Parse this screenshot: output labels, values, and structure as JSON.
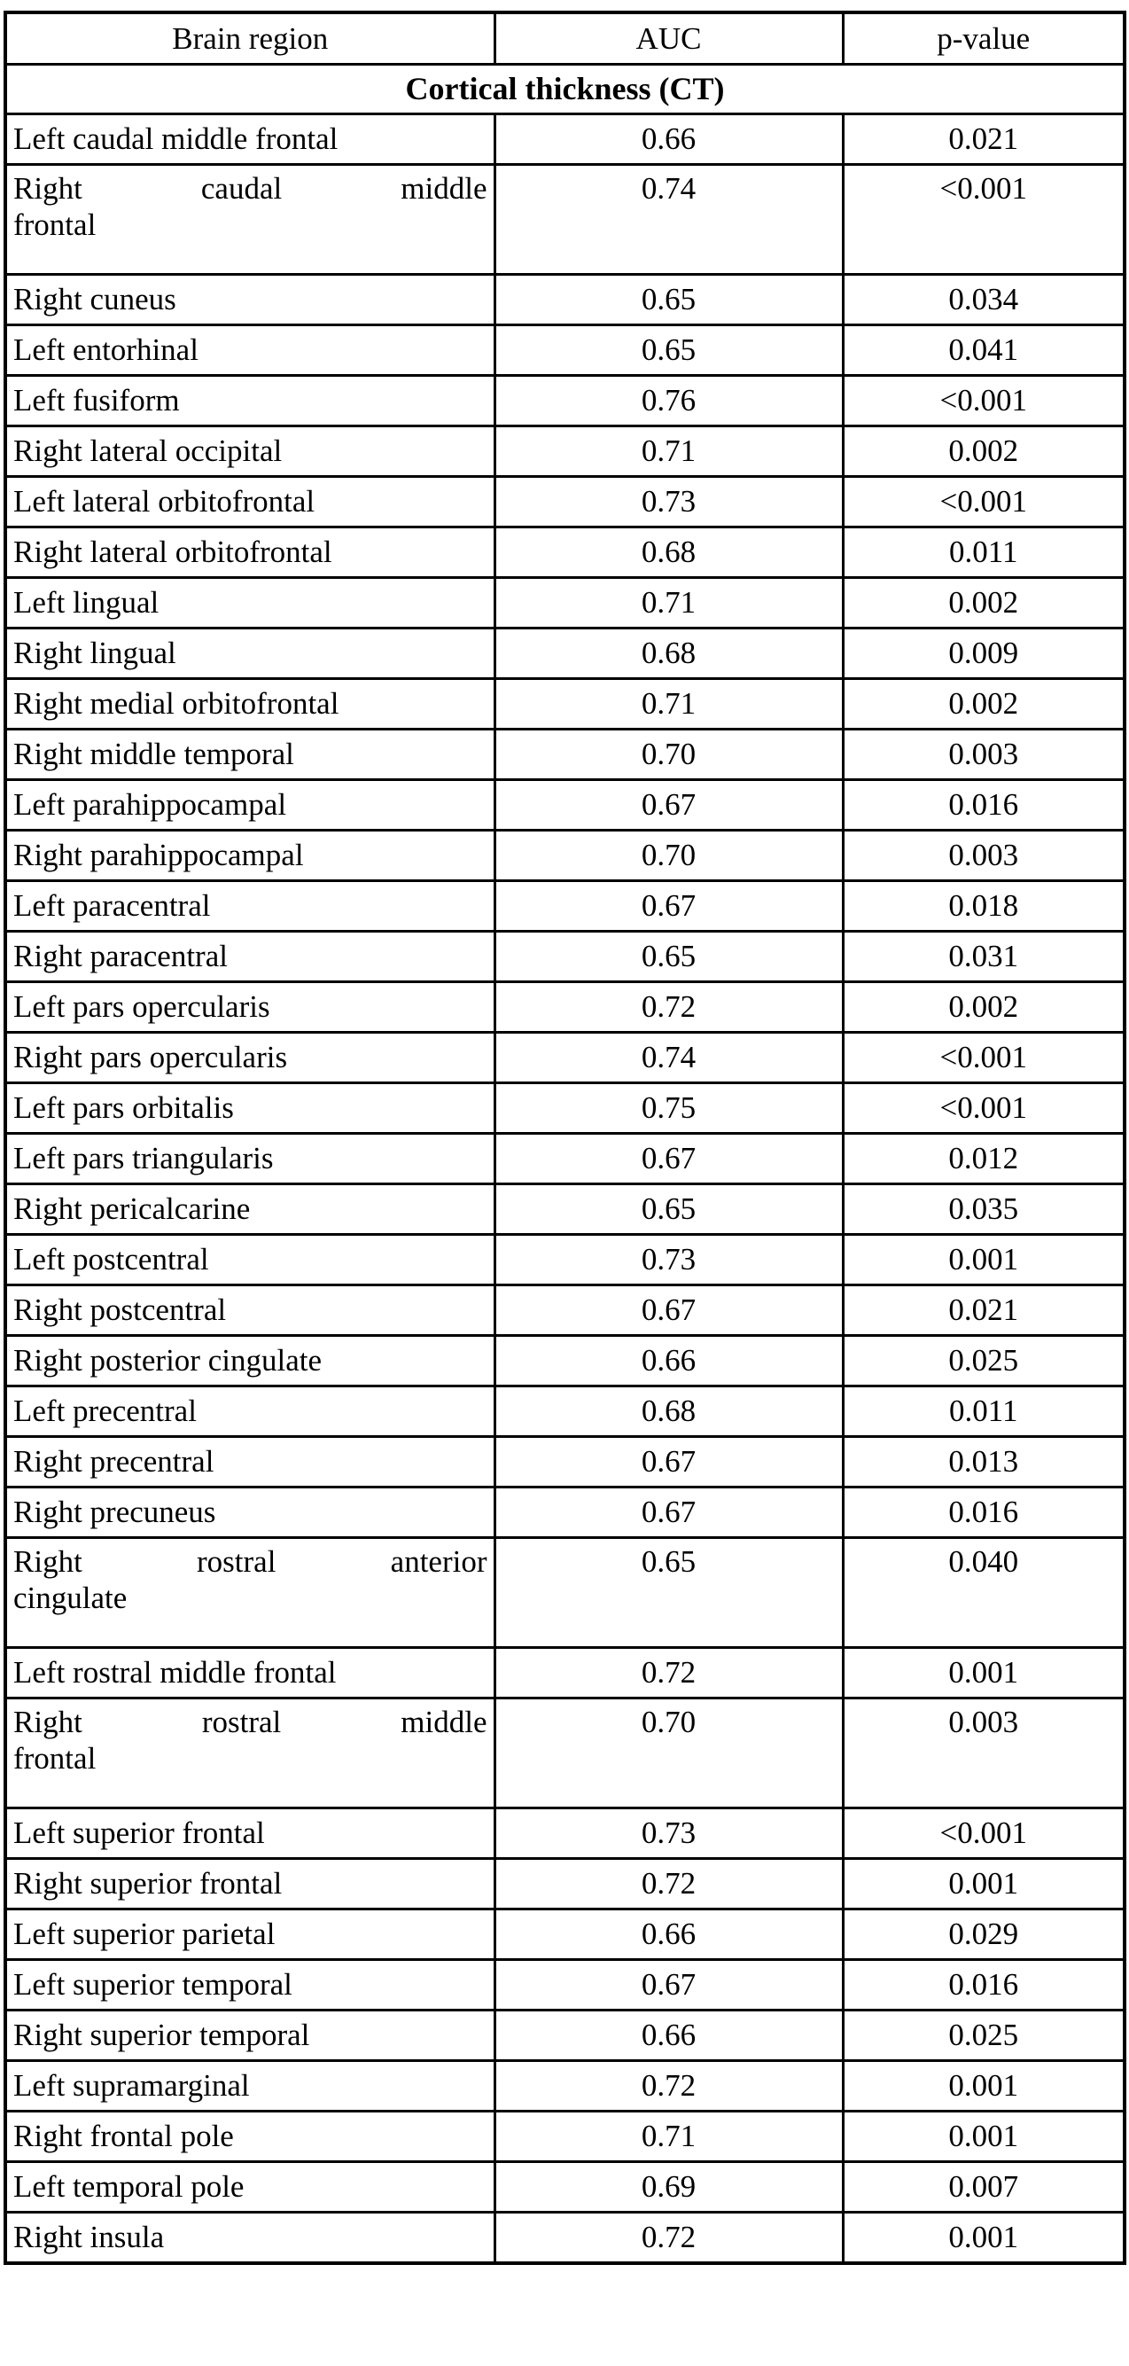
{
  "header": {
    "brain_region": "Brain region",
    "auc": "AUC",
    "p_value": "p-value"
  },
  "section": {
    "title": "Cortical thickness (CT)"
  },
  "colors": {
    "text": "#000000",
    "border": "#000000",
    "background": "#ffffff"
  },
  "rows": [
    {
      "region": "Left caudal middle frontal",
      "auc": "0.66",
      "p": "0.021"
    },
    {
      "region": "Right caudal middle frontal",
      "lines": [
        "Right caudal middle",
        "frontal"
      ],
      "auc": "0.74",
      "p": "<0.001"
    },
    {
      "region": "Right cuneus",
      "auc": "0.65",
      "p": "0.034"
    },
    {
      "region": "Left entorhinal",
      "auc": "0.65",
      "p": "0.041"
    },
    {
      "region": "Left fusiform",
      "auc": "0.76",
      "p": "<0.001"
    },
    {
      "region": "Right lateral occipital",
      "auc": "0.71",
      "p": "0.002"
    },
    {
      "region": "Left lateral orbitofrontal",
      "auc": "0.73",
      "p": "<0.001"
    },
    {
      "region": "Right lateral orbitofrontal",
      "auc": "0.68",
      "p": "0.011"
    },
    {
      "region": "Left lingual",
      "auc": "0.71",
      "p": "0.002"
    },
    {
      "region": "Right lingual",
      "auc": "0.68",
      "p": "0.009"
    },
    {
      "region": "Right medial orbitofrontal",
      "auc": "0.71",
      "p": "0.002"
    },
    {
      "region": "Right middle temporal",
      "auc": "0.70",
      "p": "0.003"
    },
    {
      "region": "Left parahippocampal",
      "auc": "0.67",
      "p": "0.016"
    },
    {
      "region": "Right parahippocampal",
      "auc": "0.70",
      "p": "0.003"
    },
    {
      "region": "Left paracentral",
      "auc": "0.67",
      "p": "0.018"
    },
    {
      "region": "Right paracentral",
      "auc": "0.65",
      "p": "0.031"
    },
    {
      "region": "Left pars opercularis",
      "auc": "0.72",
      "p": "0.002"
    },
    {
      "region": "Right pars opercularis",
      "auc": "0.74",
      "p": "<0.001"
    },
    {
      "region": "Left pars orbitalis",
      "auc": "0.75",
      "p": "<0.001"
    },
    {
      "region": "Left pars triangularis",
      "auc": "0.67",
      "p": "0.012"
    },
    {
      "region": "Right pericalcarine",
      "auc": "0.65",
      "p": "0.035"
    },
    {
      "region": "Left postcentral",
      "auc": "0.73",
      "p": "0.001"
    },
    {
      "region": "Right postcentral",
      "auc": "0.67",
      "p": "0.021"
    },
    {
      "region": "Right posterior cingulate",
      "auc": "0.66",
      "p": "0.025"
    },
    {
      "region": "Left precentral",
      "auc": "0.68",
      "p": "0.011"
    },
    {
      "region": "Right precentral",
      "auc": "0.67",
      "p": "0.013"
    },
    {
      "region": "Right precuneus",
      "auc": "0.67",
      "p": "0.016"
    },
    {
      "region": "Right rostral anterior cingulate",
      "lines": [
        "Right rostral anterior",
        "cingulate"
      ],
      "auc": "0.65",
      "p": "0.040"
    },
    {
      "region": "Left rostral middle frontal",
      "auc": "0.72",
      "p": "0.001"
    },
    {
      "region": "Right rostral middle frontal",
      "lines": [
        "Right rostral middle",
        "frontal"
      ],
      "auc": "0.70",
      "p": "0.003"
    },
    {
      "region": "Left superior frontal",
      "auc": "0.73",
      "p": "<0.001"
    },
    {
      "region": "Right superior frontal",
      "auc": "0.72",
      "p": "0.001"
    },
    {
      "region": "Left superior parietal",
      "auc": "0.66",
      "p": "0.029"
    },
    {
      "region": "Left superior temporal",
      "auc": "0.67",
      "p": "0.016"
    },
    {
      "region": "Right superior temporal",
      "auc": "0.66",
      "p": "0.025"
    },
    {
      "region": "Left supramarginal",
      "auc": "0.72",
      "p": "0.001"
    },
    {
      "region": "Right frontal pole",
      "auc": "0.71",
      "p": "0.001"
    },
    {
      "region": "Left temporal pole",
      "auc": "0.69",
      "p": "0.007"
    },
    {
      "region": "Right insula",
      "auc": "0.72",
      "p": "0.001"
    }
  ]
}
